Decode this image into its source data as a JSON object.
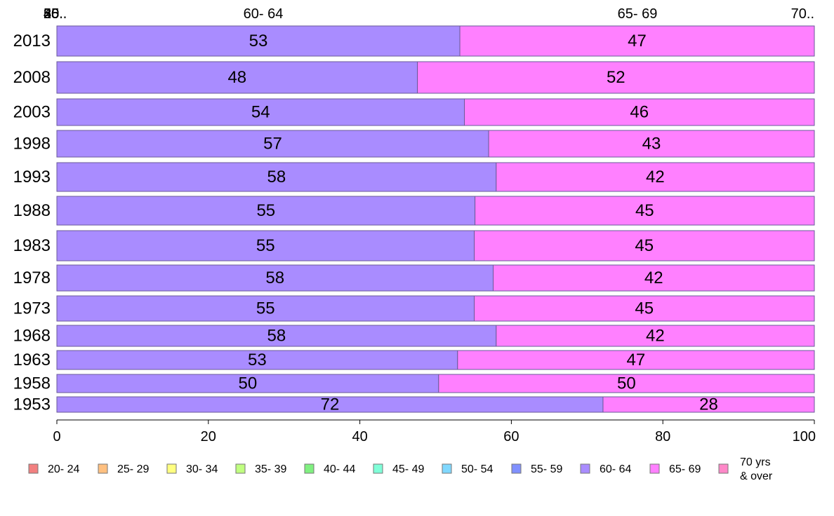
{
  "chart_data": {
    "type": "bar",
    "orientation": "horizontal",
    "stacked": true,
    "categories": [
      "2013",
      "2008",
      "2003",
      "1998",
      "1993",
      "1988",
      "1983",
      "1978",
      "1973",
      "1968",
      "1963",
      "1958",
      "1953"
    ],
    "series": [
      {
        "name": "20- 24",
        "color": "#f28080",
        "values": [
          0,
          0,
          0,
          0,
          0,
          0,
          0,
          0,
          0,
          0,
          0,
          0,
          0
        ]
      },
      {
        "name": "25- 29",
        "color": "#ffc080",
        "values": [
          0,
          0,
          0,
          0,
          0,
          0,
          0,
          0,
          0,
          0,
          0,
          0,
          0
        ]
      },
      {
        "name": "30- 34",
        "color": "#ffff80",
        "values": [
          0,
          0,
          0,
          0,
          0,
          0,
          0,
          0,
          0,
          0,
          0,
          0,
          0
        ]
      },
      {
        "name": "35- 39",
        "color": "#c0ff80",
        "values": [
          0,
          0,
          0,
          0,
          0,
          0,
          0,
          0,
          0,
          0,
          0,
          0,
          0
        ]
      },
      {
        "name": "40- 44",
        "color": "#80f080",
        "values": [
          0,
          0,
          0,
          0,
          0,
          0,
          0,
          0,
          0,
          0,
          0,
          0,
          0
        ]
      },
      {
        "name": "45- 49",
        "color": "#80ffd8",
        "values": [
          0,
          0,
          0,
          0,
          0,
          0,
          0,
          0,
          0,
          0,
          0,
          0,
          0
        ]
      },
      {
        "name": "50- 54",
        "color": "#80d8ff",
        "values": [
          0,
          0,
          0,
          0,
          0,
          0,
          0,
          0,
          0,
          0,
          0,
          0,
          0
        ]
      },
      {
        "name": "55- 59",
        "color": "#8090ff",
        "values": [
          0,
          0,
          0,
          0,
          0,
          0,
          0,
          0,
          0,
          0,
          0,
          0,
          0
        ]
      },
      {
        "name": "60- 64",
        "color": "#a98cff",
        "values": [
          53.2,
          47.6,
          53.8,
          57.0,
          58.0,
          55.2,
          55.1,
          57.6,
          55.1,
          58.0,
          52.9,
          50.4,
          72.1
        ]
      },
      {
        "name": "65- 69",
        "color": "#ff80ff",
        "values": [
          46.8,
          52.4,
          46.2,
          43.0,
          42.0,
          44.8,
          44.9,
          42.4,
          44.9,
          42.0,
          47.1,
          49.6,
          27.9
        ]
      },
      {
        "name": "70 yrs & over",
        "color": "#ff88c8",
        "values": [
          0,
          0,
          0,
          0,
          0,
          0,
          0,
          0,
          0,
          0,
          0,
          0,
          0
        ]
      }
    ],
    "data_labels": [
      [
        "53",
        "47"
      ],
      [
        "48",
        "52"
      ],
      [
        "54",
        "46"
      ],
      [
        "57",
        "43"
      ],
      [
        "58",
        "42"
      ],
      [
        "55",
        "45"
      ],
      [
        "55",
        "45"
      ],
      [
        "58",
        "42"
      ],
      [
        "55",
        "45"
      ],
      [
        "58",
        "42"
      ],
      [
        "53",
        "47"
      ],
      [
        "50",
        "50"
      ],
      [
        "72",
        "28"
      ]
    ],
    "top_labels": [
      "20..",
      "25..",
      "30..",
      "35..",
      "40..",
      "45..",
      "50..",
      "55..",
      "60- 64",
      "65- 69",
      "70.."
    ],
    "xlim": [
      0,
      100
    ],
    "xticks": [
      "0",
      "20",
      "40",
      "60",
      "80",
      "100"
    ],
    "legend_position": "bottom",
    "legend_entries": [
      "20- 24",
      "25- 29",
      "30- 34",
      "35- 39",
      "40- 44",
      "45- 49",
      "50- 54",
      "55- 59",
      "60- 64",
      "65- 69",
      "70 yrs & over"
    ],
    "legend_last_lines": [
      "70 yrs",
      "& over"
    ]
  }
}
